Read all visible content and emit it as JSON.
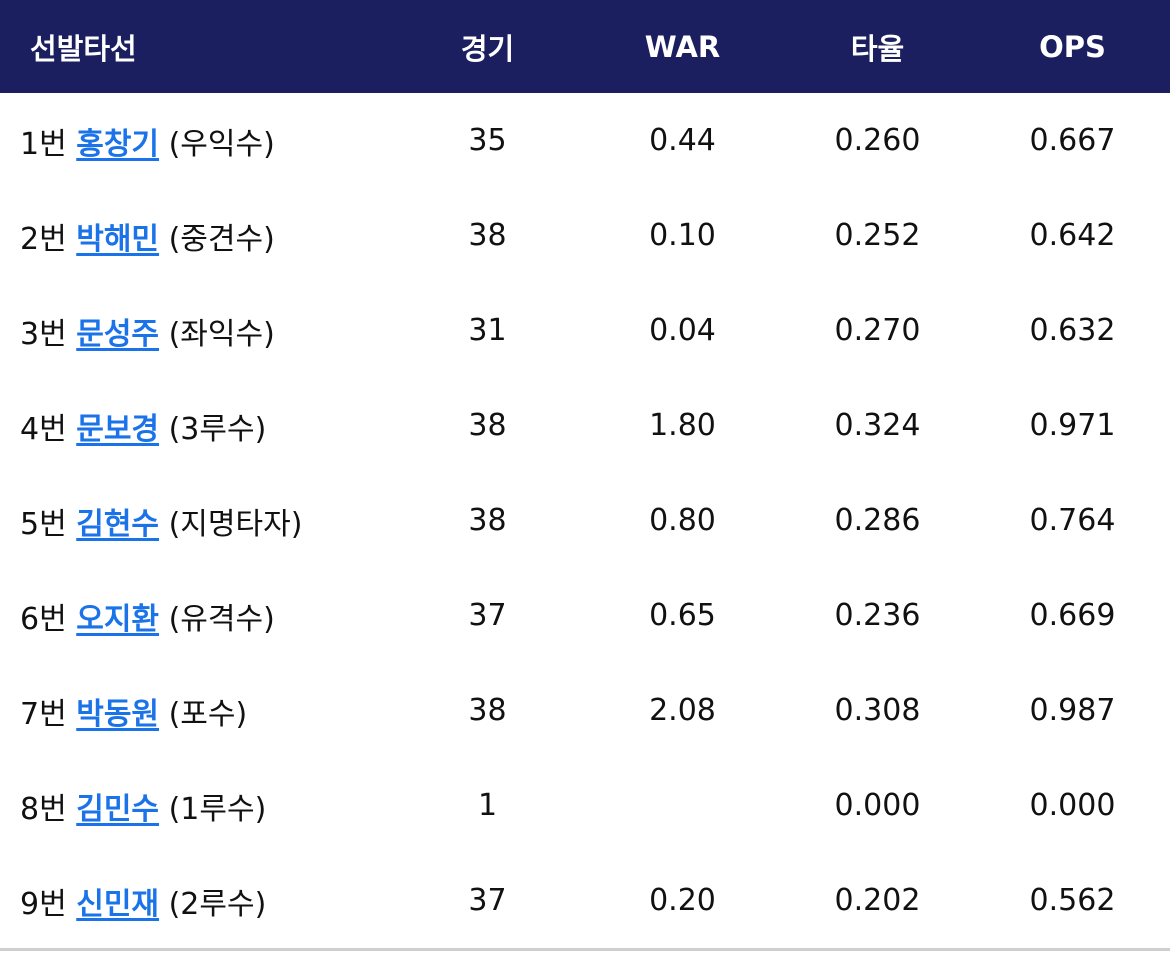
{
  "table": {
    "header": [
      "선발타선",
      "경기",
      "WAR",
      "타율",
      "OPS"
    ],
    "rows": [
      {
        "order": "1번",
        "name": "홍창기",
        "position": "(우익수)",
        "games": "35",
        "war": "0.44",
        "avg": "0.260",
        "ops": "0.667"
      },
      {
        "order": "2번",
        "name": "박해민",
        "position": "(중견수)",
        "games": "38",
        "war": "0.10",
        "avg": "0.252",
        "ops": "0.642"
      },
      {
        "order": "3번",
        "name": "문성주",
        "position": "(좌익수)",
        "games": "31",
        "war": "0.04",
        "avg": "0.270",
        "ops": "0.632"
      },
      {
        "order": "4번",
        "name": "문보경",
        "position": "(3루수)",
        "games": "38",
        "war": "1.80",
        "avg": "0.324",
        "ops": "0.971"
      },
      {
        "order": "5번",
        "name": "김현수",
        "position": "(지명타자)",
        "games": "38",
        "war": "0.80",
        "avg": "0.286",
        "ops": "0.764"
      },
      {
        "order": "6번",
        "name": "오지환",
        "position": "(유격수)",
        "games": "37",
        "war": "0.65",
        "avg": "0.236",
        "ops": "0.669"
      },
      {
        "order": "7번",
        "name": "박동원",
        "position": "(포수)",
        "games": "38",
        "war": "2.08",
        "avg": "0.308",
        "ops": "0.987"
      },
      {
        "order": "8번",
        "name": "김민수",
        "position": "(1루수)",
        "games": "1",
        "war": null,
        "avg": "0.000",
        "ops": "0.000"
      },
      {
        "order": "9번",
        "name": "신민재",
        "position": "(2루수)",
        "games": "37",
        "war": "0.20",
        "avg": "0.202",
        "ops": "0.562"
      }
    ]
  }
}
